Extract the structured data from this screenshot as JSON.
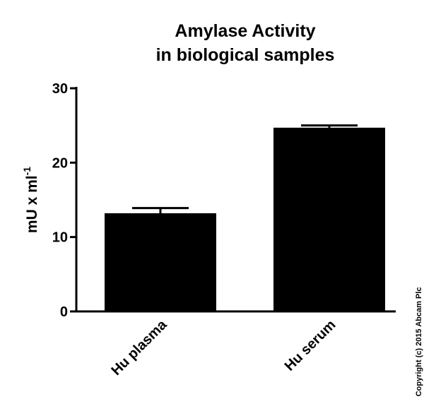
{
  "chart_data": {
    "type": "bar",
    "title": [
      "Amylase Activity",
      "in biological samples"
    ],
    "y_label": {
      "text": "mU x ml",
      "superscript": "-1"
    },
    "categories": [
      "Hu plasma",
      "Hu serum"
    ],
    "values": [
      13.2,
      24.7
    ],
    "errors": [
      0.7,
      0.3
    ],
    "color": "#000000",
    "ylim": [
      0,
      30
    ],
    "yticks": [
      0,
      10,
      20,
      30
    ],
    "annotation": "Copyright (c) 2015 Abcam Plc"
  }
}
